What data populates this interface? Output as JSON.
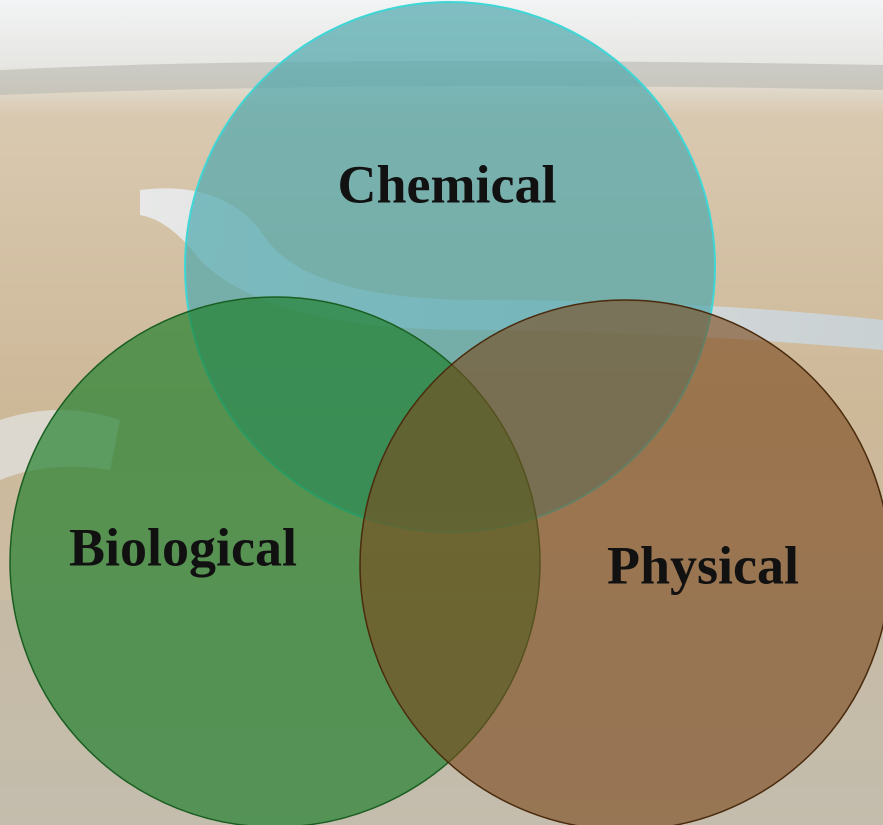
{
  "nodes": [
    {
      "label": "Chemical"
    },
    {
      "label": "Biological"
    },
    {
      "label": "Physical"
    }
  ]
}
